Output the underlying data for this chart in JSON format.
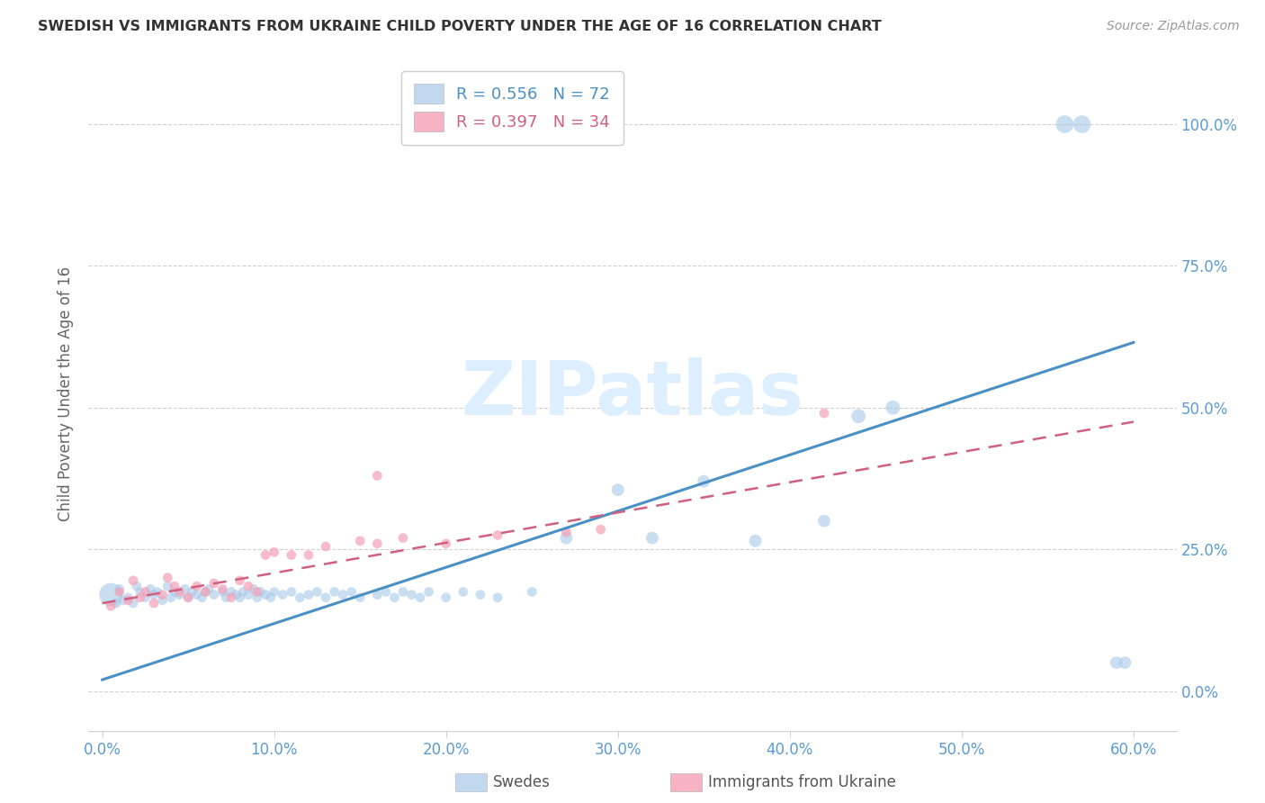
{
  "title": "SWEDISH VS IMMIGRANTS FROM UKRAINE CHILD POVERTY UNDER THE AGE OF 16 CORRELATION CHART",
  "source": "Source: ZipAtlas.com",
  "ylabel": "Child Poverty Under the Age of 16",
  "xlabel": "",
  "legend_swedes": "Swedes",
  "legend_ukraine": "Immigrants from Ukraine",
  "r_swedes": 0.556,
  "n_swedes": 72,
  "r_ukraine": 0.397,
  "n_ukraine": 34,
  "blue_color": "#a8c8e8",
  "pink_color": "#f4a0b5",
  "blue_line_color": "#4a90c4",
  "pink_line_color": "#d06080",
  "axis_color": "#5b9bd5",
  "grid_color": "#d0d0d0",
  "watermark_color": "#ddeeff",
  "swedes_x": [
    0.005,
    0.008,
    0.01,
    0.012,
    0.015,
    0.018,
    0.02,
    0.022,
    0.025,
    0.028,
    0.03,
    0.032,
    0.035,
    0.038,
    0.04,
    0.042,
    0.045,
    0.048,
    0.05,
    0.052,
    0.055,
    0.058,
    0.06,
    0.062,
    0.065,
    0.07,
    0.072,
    0.075,
    0.078,
    0.08,
    0.082,
    0.085,
    0.088,
    0.09,
    0.092,
    0.095,
    0.098,
    0.1,
    0.105,
    0.11,
    0.115,
    0.12,
    0.125,
    0.13,
    0.135,
    0.14,
    0.145,
    0.15,
    0.16,
    0.165,
    0.17,
    0.175,
    0.18,
    0.185,
    0.19,
    0.2,
    0.21,
    0.22,
    0.23,
    0.25,
    0.27,
    0.3,
    0.32,
    0.35,
    0.38,
    0.42,
    0.44,
    0.46,
    0.56,
    0.57,
    0.59,
    0.595
  ],
  "swedes_y": [
    0.17,
    0.155,
    0.18,
    0.16,
    0.165,
    0.155,
    0.185,
    0.175,
    0.165,
    0.18,
    0.17,
    0.175,
    0.16,
    0.185,
    0.165,
    0.175,
    0.17,
    0.18,
    0.165,
    0.175,
    0.17,
    0.165,
    0.175,
    0.18,
    0.17,
    0.175,
    0.165,
    0.175,
    0.17,
    0.165,
    0.175,
    0.17,
    0.18,
    0.165,
    0.175,
    0.17,
    0.165,
    0.175,
    0.17,
    0.175,
    0.165,
    0.17,
    0.175,
    0.165,
    0.175,
    0.17,
    0.175,
    0.165,
    0.17,
    0.175,
    0.165,
    0.175,
    0.17,
    0.165,
    0.175,
    0.165,
    0.175,
    0.17,
    0.165,
    0.175,
    0.27,
    0.355,
    0.27,
    0.37,
    0.265,
    0.3,
    0.485,
    0.5,
    1.0,
    1.0,
    0.05,
    0.05
  ],
  "swedes_size": [
    350,
    60,
    60,
    60,
    60,
    60,
    60,
    60,
    60,
    60,
    60,
    60,
    60,
    60,
    60,
    60,
    60,
    60,
    60,
    60,
    60,
    60,
    60,
    60,
    60,
    60,
    60,
    60,
    60,
    60,
    60,
    60,
    60,
    60,
    60,
    60,
    60,
    60,
    60,
    60,
    60,
    60,
    60,
    60,
    60,
    60,
    60,
    60,
    60,
    60,
    60,
    60,
    60,
    60,
    60,
    60,
    60,
    60,
    60,
    60,
    100,
    100,
    100,
    100,
    100,
    100,
    130,
    130,
    200,
    200,
    100,
    100
  ],
  "ukraine_x": [
    0.005,
    0.01,
    0.015,
    0.018,
    0.022,
    0.025,
    0.03,
    0.035,
    0.038,
    0.042,
    0.045,
    0.05,
    0.055,
    0.06,
    0.065,
    0.07,
    0.075,
    0.08,
    0.085,
    0.09,
    0.095,
    0.1,
    0.11,
    0.12,
    0.13,
    0.15,
    0.16,
    0.175,
    0.2,
    0.23,
    0.27,
    0.16,
    0.29,
    0.42
  ],
  "ukraine_y": [
    0.15,
    0.175,
    0.16,
    0.195,
    0.165,
    0.175,
    0.155,
    0.17,
    0.2,
    0.185,
    0.175,
    0.165,
    0.185,
    0.175,
    0.19,
    0.18,
    0.165,
    0.195,
    0.185,
    0.175,
    0.24,
    0.245,
    0.24,
    0.24,
    0.255,
    0.265,
    0.26,
    0.27,
    0.26,
    0.275,
    0.28,
    0.38,
    0.285,
    0.49
  ],
  "ukraine_size": [
    60,
    60,
    60,
    60,
    60,
    60,
    60,
    60,
    60,
    60,
    60,
    60,
    60,
    60,
    60,
    60,
    60,
    60,
    60,
    60,
    60,
    60,
    60,
    60,
    60,
    60,
    60,
    60,
    60,
    60,
    60,
    60,
    60,
    60
  ],
  "blue_line_x": [
    0.0,
    0.6
  ],
  "blue_line_y": [
    0.02,
    0.615
  ],
  "pink_line_x": [
    0.0,
    0.6
  ],
  "pink_line_y": [
    0.155,
    0.475
  ],
  "ytick_vals": [
    0.0,
    0.25,
    0.5,
    0.75,
    1.0
  ],
  "xtick_vals": [
    0.0,
    0.1,
    0.2,
    0.3,
    0.4,
    0.5,
    0.6
  ]
}
